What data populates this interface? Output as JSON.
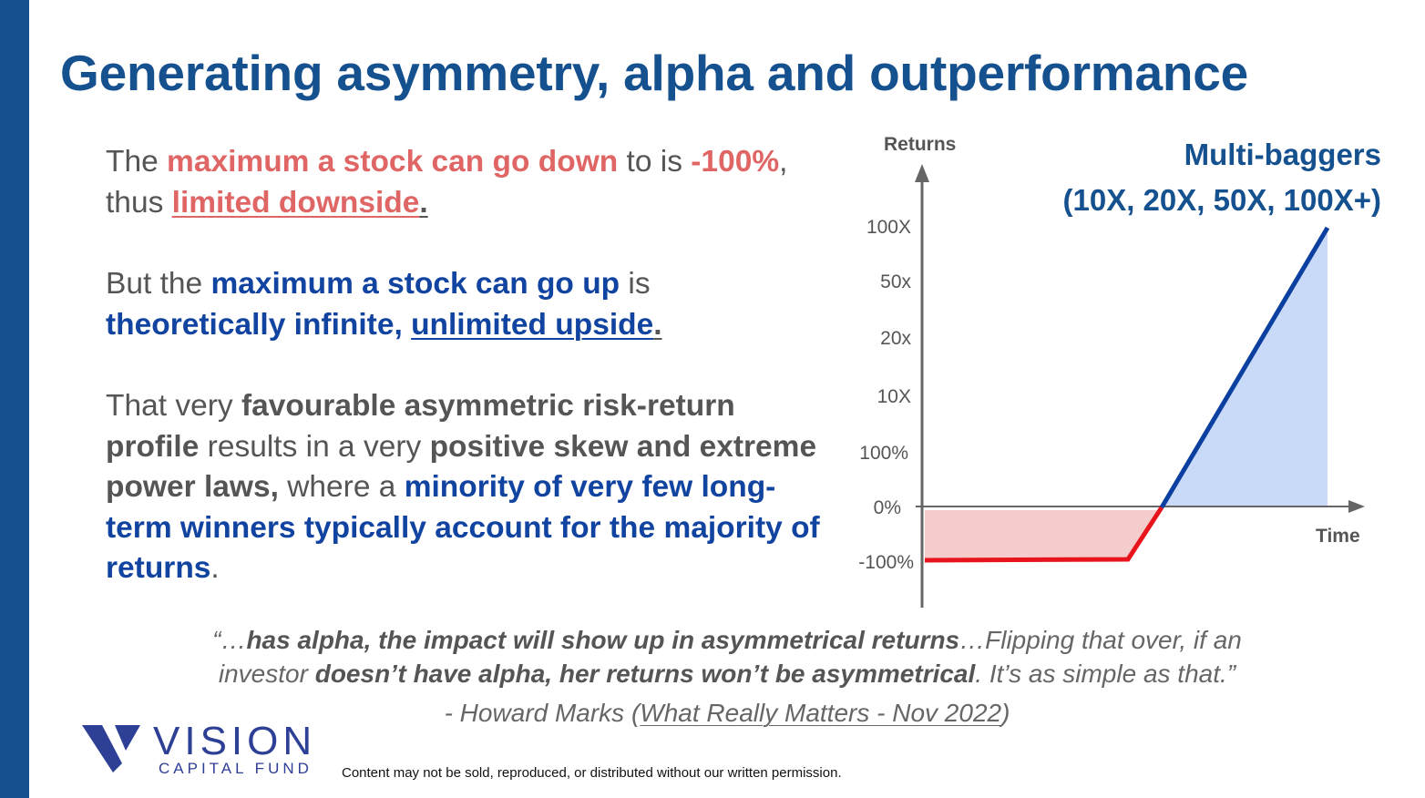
{
  "slide": {
    "title": "Generating asymmetry, alpha and outperformance",
    "colors": {
      "brand_blue": "#15508f",
      "text_red": "#e06666",
      "text_blue": "#1143a0",
      "text_gray": "#555555"
    },
    "paragraphs": [
      [
        {
          "text": "The ",
          "style": "plain"
        },
        {
          "text": "maximum a stock can go down",
          "style": "red-bold"
        },
        {
          "text": " to is ",
          "style": "plain"
        },
        {
          "text": "-100%",
          "style": "red-bold"
        },
        {
          "text": ", thus ",
          "style": "plain"
        },
        {
          "text": "limited downside",
          "style": "red-bold-underline"
        },
        {
          "text": ".",
          "style": "dark-bold-underline"
        }
      ],
      [
        {
          "text": "But the ",
          "style": "plain"
        },
        {
          "text": "maximum a stock can go up",
          "style": "blue-bold"
        },
        {
          "text": " is ",
          "style": "plain"
        },
        {
          "text": "theoretically infinite, ",
          "style": "blue-bold"
        },
        {
          "text": "unlimited upside",
          "style": "blue-bold-underline"
        },
        {
          "text": ".",
          "style": "dark-bold-underline"
        }
      ],
      [
        {
          "text": "That very ",
          "style": "plain"
        },
        {
          "text": "favourable asymmetric risk-return profile",
          "style": "dark-bold"
        },
        {
          "text": " results in a very ",
          "style": "plain"
        },
        {
          "text": "positive skew and extreme power laws,",
          "style": "dark-bold"
        },
        {
          "text": " where a ",
          "style": "plain"
        },
        {
          "text": "minority of very few long-term winners typically account for the majority of returns",
          "style": "blue-bold"
        },
        {
          "text": ".",
          "style": "plain"
        }
      ]
    ]
  },
  "diagram": {
    "y_axis_title": "Returns",
    "x_axis_title": "Time",
    "y_ticks": [
      "100X",
      "50x",
      "20x",
      "10X",
      "100%",
      "0%",
      "-100%"
    ],
    "callout_line1": "Multi-baggers",
    "callout_line2": "(10X, 20X, 50X, 100X+)",
    "colors": {
      "downside_line": "#e8141b",
      "downside_fill": "#f4cccc",
      "upside_line": "#0b3fa0",
      "upside_fill": "#c9daf8"
    }
  },
  "quote": {
    "line1": [
      {
        "text": "“…",
        "style": "plain"
      },
      {
        "text": "has alpha, the impact will show up in asymmetrical returns",
        "style": "bold"
      },
      {
        "text": "…Flipping that over, if an",
        "style": "plain"
      }
    ],
    "line2": [
      {
        "text": "investor ",
        "style": "plain"
      },
      {
        "text": "doesn’t have alpha, her returns won’t be asymmetrical",
        "style": "bold"
      },
      {
        "text": ". It’s as simple as that.”",
        "style": "plain"
      }
    ],
    "attribution_prefix": "- Howard Marks (",
    "attribution_link": "What Really Matters - Nov 2022",
    "attribution_suffix": ")"
  },
  "logo": {
    "line1": "VISION",
    "line2": "CAPITAL FUND"
  },
  "footer": "Content may not be sold, reproduced, or distributed without our written permission."
}
